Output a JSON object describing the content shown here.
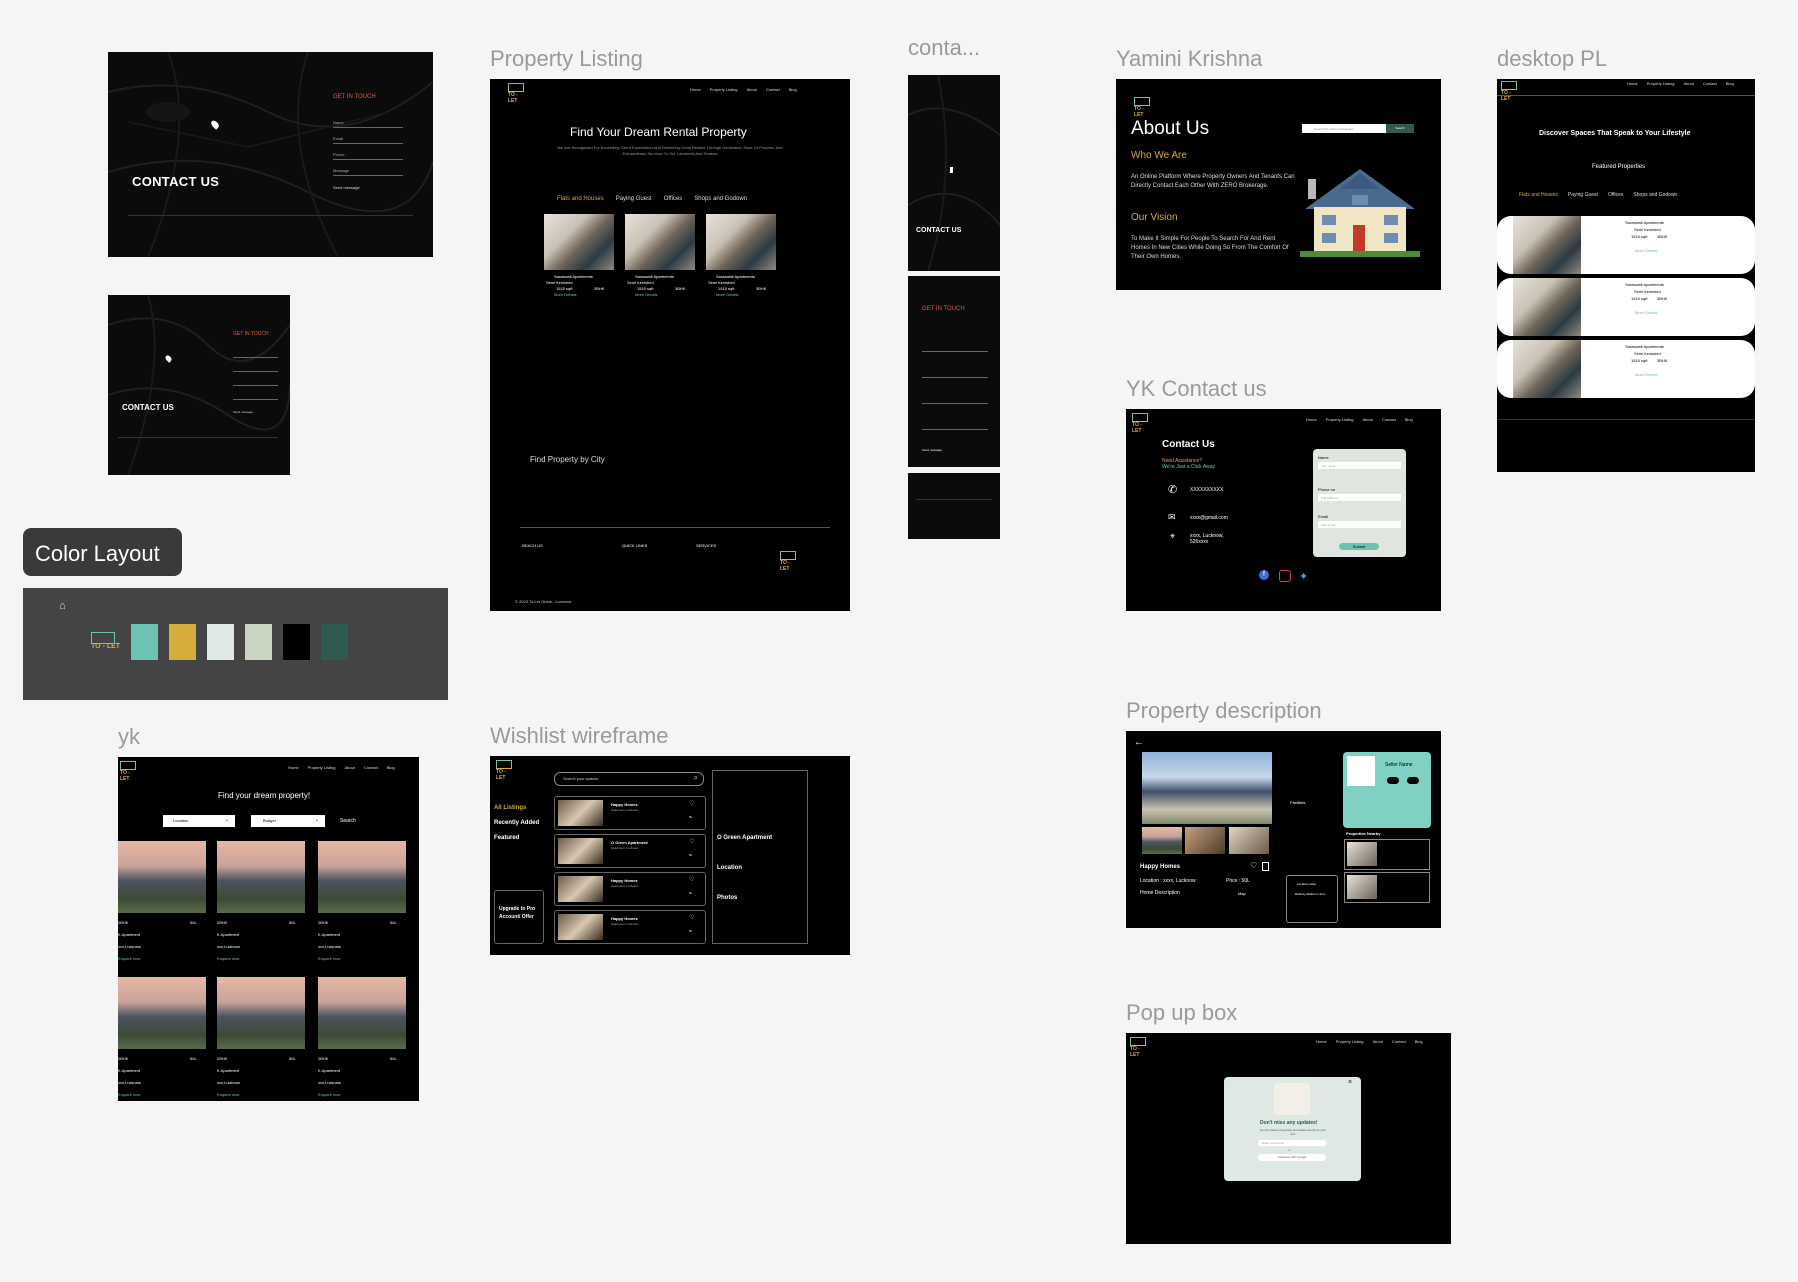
{
  "frames": {
    "property_listing": "Property Listing",
    "conta": "conta...",
    "yamini": "Yamini Krishna",
    "desktop_pl": "desktop PL",
    "yk_contact": "YK Contact us",
    "color_layout": "Color Layout",
    "yk": "yk",
    "wishlist": "Wishlist wireframe",
    "property_description": "Property description",
    "popup": "Pop up box"
  },
  "brand": {
    "logo_text": "TO - LET"
  },
  "nav": [
    "Home",
    "Property Listing",
    "About",
    "Contact",
    "Blog"
  ],
  "contact_dark": {
    "title": "CONTACT US",
    "get_in_touch": "GET IN TOUCH",
    "fields": [
      "Name",
      "Email",
      "Phone",
      "Message"
    ],
    "send": "Send message"
  },
  "listing": {
    "hero_title": "Find Your Dream Rental Property",
    "hero_sub": "We Are Recognized For Exceeding Client Expectation And Delivering Great Results Through Dedication, Ease Of Process, And Extraordinary Services To Our Landlords And Tenants",
    "tabs": [
      "Flats and Houses",
      "Paying Guest",
      "Offices",
      "Shops and Godown"
    ],
    "card": {
      "name": "Saraswati Apartments",
      "furnish": "Semi furnished",
      "size": "1515 sqft",
      "bhk": "3BHK",
      "link": "More Details"
    },
    "by_city": "Find Property by City",
    "footer_cols": [
      "REACH US",
      "QUICK LINKS",
      "SERVICES"
    ],
    "copyright": "© 2023 To-Let Globe - Lucknow"
  },
  "about": {
    "title": "About Us",
    "search_placeholder": "Search PG, Flats and Houses",
    "search_btn": "Search",
    "who_h": "Who We Are",
    "who_p": "An Online Platform Where Property Owners And Tenants Can Directly Contact Each Other With ZERO Brokerage.",
    "vision_h": "Our Vision",
    "vision_p": "To Make It Simple For People To Search For And Rent Homes In New Cities While Doing So From The Comfort Of Their Own Homes."
  },
  "desktop_pl": {
    "title": "Discover Spaces That Speak to Your Lifestyle",
    "featured": "Featured Properties",
    "tabs": [
      "Flats and Houses",
      "Paying Guest",
      "Offices",
      "Shops and Godown"
    ]
  },
  "yk_contact": {
    "title": "Contact Us",
    "sub1": "Need Assistance?",
    "sub2": "We're Just a Click Away",
    "phone": "XXXXXXXXXX",
    "email": "xxxx@gmail.com",
    "address1": "xxxx, Lucknow,",
    "address2": "526xxxx",
    "f_name": "Name",
    "f_name_ph": "Your name",
    "f_phone": "Phone no",
    "f_phone_ph": "The Litflix no",
    "f_email": "Email",
    "f_email_ph": "Your email",
    "submit": "Submit"
  },
  "colors": [
    "#6cc2b3",
    "#d4ad3c",
    "#dfe9e3",
    "#c9d4c1",
    "#000000",
    "#2e5a50"
  ],
  "yk": {
    "hero": "Find your dream property!",
    "location": "Location",
    "budget": "Budget",
    "search": "Search",
    "bhk": "2BHK",
    "price": "50L",
    "apt": "K Apartment",
    "loc": "xxx,Lucknow",
    "enquire": "Enquire now"
  },
  "wishlist": {
    "search_ph": "Search your spaces",
    "side": [
      "All Listings",
      "Recently Added",
      "Featured"
    ],
    "upgrade": "Upgrade to Pro Account/ Offer",
    "items": [
      "Happy Homes",
      "O Green Apartment",
      "Happy Homes",
      "Happy Homes"
    ],
    "item_sub": "Apartment, Lucknow",
    "item_price": "5L",
    "detail": [
      "O Green Apartment",
      "Location",
      "Photos"
    ]
  },
  "desc": {
    "seller": "Seller Name",
    "name": "Happy Homes",
    "location": "Location : xxxx, Lucknow",
    "price": "Price : 50L",
    "house_desc": "Home Description",
    "map": "Map",
    "nearby": "Properties Nearby",
    "facilities": "Facilities",
    "loc_away": "Location away",
    "railway": "Railway Station in 2km"
  },
  "popup": {
    "title": "Don't miss any updates!",
    "sub": "Get the latest properties and deals directly to your box",
    "email_ph": "Enter your email",
    "or": "or",
    "google": "Continue with Google"
  }
}
